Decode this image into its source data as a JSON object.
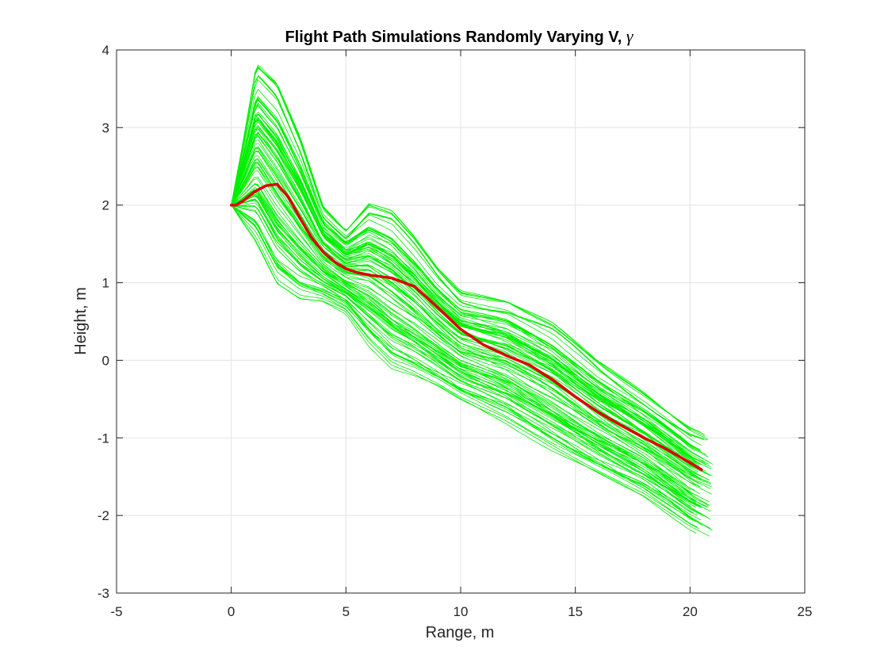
{
  "chart_data": {
    "type": "line",
    "title": "Flight Path Simulations Randomly Varying V, ",
    "title_symbol": "γ",
    "xlabel": "Range, m",
    "ylabel": "Height, m",
    "xlim": [
      -5,
      25
    ],
    "ylim": [
      -3,
      4
    ],
    "xticks": [
      -5,
      0,
      5,
      10,
      15,
      20,
      25
    ],
    "yticks": [
      -3,
      -2,
      -1,
      0,
      1,
      2,
      3,
      4
    ],
    "xtick_labels": [
      "-5",
      "0",
      "5",
      "10",
      "15",
      "20",
      "25"
    ],
    "ytick_labels": [
      "-3",
      "-2",
      "-1",
      "0",
      "1",
      "2",
      "3",
      "4"
    ],
    "grid": true,
    "legend": "none",
    "colors": {
      "simulations": "#00ee00",
      "nominal": "#dd0000",
      "grid": "#e3e3e3",
      "axis": "#262626"
    },
    "simulation_envelope": {
      "count": 100,
      "upper": {
        "x": [
          0,
          0.5,
          1.1,
          2,
          3,
          4,
          5,
          6,
          7,
          8,
          9,
          10,
          12,
          14,
          16,
          18,
          20,
          21
        ],
        "y": [
          2.0,
          2.8,
          3.85,
          3.6,
          2.9,
          2.0,
          1.7,
          2.05,
          1.95,
          1.6,
          1.2,
          0.9,
          0.8,
          0.5,
          0.0,
          -0.4,
          -0.85,
          -1.0
        ]
      },
      "lower": {
        "x": [
          0,
          1,
          2,
          3,
          4,
          5,
          6,
          7,
          8,
          9,
          10,
          12,
          14,
          16,
          18,
          20,
          21
        ],
        "y": [
          2.0,
          1.5,
          0.9,
          0.72,
          0.72,
          0.58,
          0.15,
          -0.15,
          -0.25,
          -0.38,
          -0.55,
          -0.85,
          -1.2,
          -1.5,
          -1.8,
          -2.2,
          -2.35
        ]
      },
      "end_range": [
        20,
        21
      ],
      "end_height": [
        -2.35,
        -0.75
      ]
    },
    "series": [
      {
        "x": [
          0,
          0.2,
          0.5,
          1,
          1.5,
          2,
          2.5,
          3,
          3.5,
          4,
          4.5,
          5,
          5.5,
          6,
          7,
          8,
          9,
          10,
          11,
          12,
          13,
          14,
          15,
          16,
          17,
          18,
          19,
          20,
          20.5
        ],
        "y": [
          2.0,
          2.0,
          2.05,
          2.17,
          2.25,
          2.27,
          2.1,
          1.83,
          1.58,
          1.4,
          1.27,
          1.18,
          1.13,
          1.1,
          1.06,
          0.95,
          0.68,
          0.4,
          0.2,
          0.06,
          -0.06,
          -0.25,
          -0.47,
          -0.67,
          -0.84,
          -1.0,
          -1.15,
          -1.32,
          -1.41
        ]
      }
    ]
  }
}
